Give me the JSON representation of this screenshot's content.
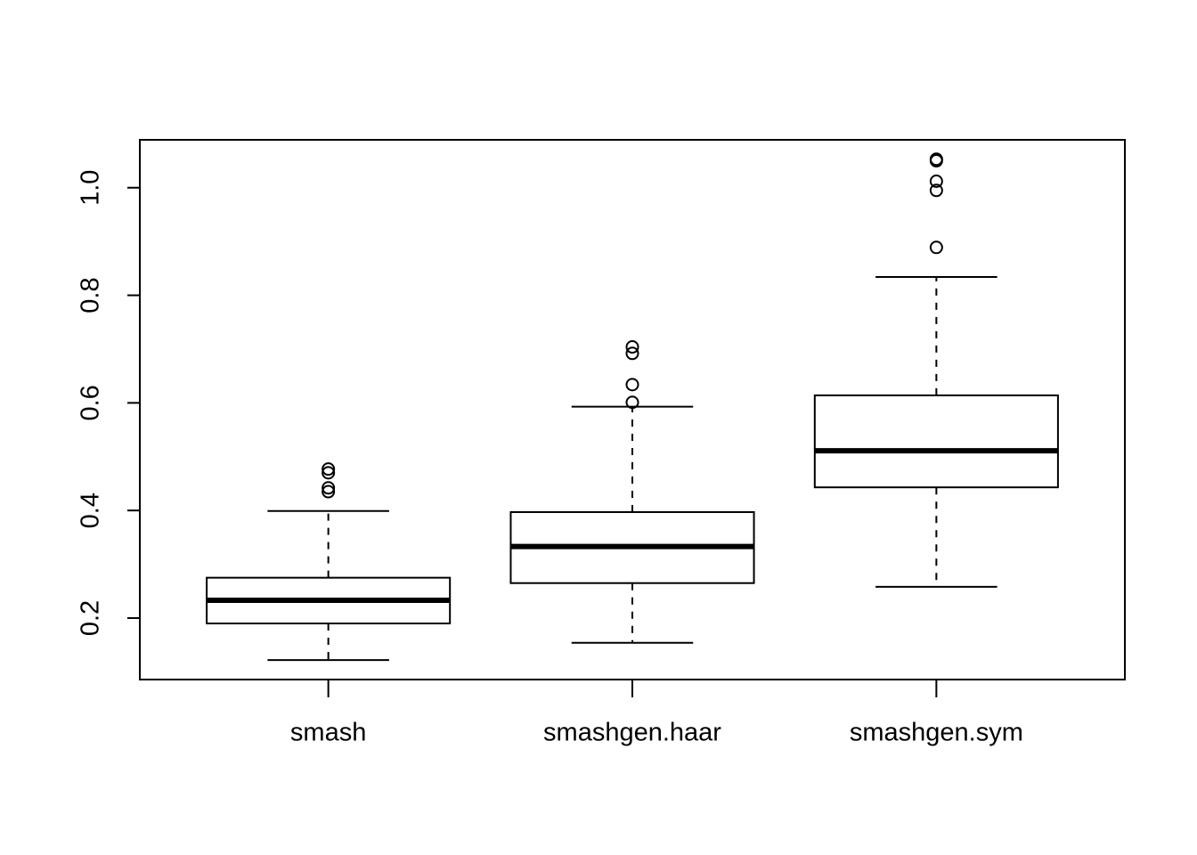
{
  "chart_data": {
    "type": "box",
    "categories": [
      "smash",
      "smashgen.haar",
      "smashgen.sym"
    ],
    "boxes": [
      {
        "whisker_low": 0.122,
        "q1": 0.19,
        "median": 0.233,
        "q3": 0.275,
        "whisker_high": 0.399,
        "outliers": [
          0.477,
          0.47,
          0.442,
          0.435
        ]
      },
      {
        "whisker_low": 0.154,
        "q1": 0.265,
        "median": 0.333,
        "q3": 0.397,
        "whisker_high": 0.593,
        "outliers": [
          0.601,
          0.634,
          0.692,
          0.704
        ]
      },
      {
        "whisker_low": 0.258,
        "q1": 0.443,
        "median": 0.511,
        "q3": 0.614,
        "whisker_high": 0.834,
        "outliers": [
          0.889,
          0.995,
          1.012,
          1.05,
          1.053
        ]
      }
    ],
    "color": "#000000",
    "ylim": [
      0.0857,
      1.089
    ],
    "yticks": [
      {
        "value": 0.2,
        "label": "0.2"
      },
      {
        "value": 0.4,
        "label": "0.4"
      },
      {
        "value": 0.6,
        "label": "0.6"
      },
      {
        "value": 0.8,
        "label": "0.8"
      },
      {
        "value": 1.0,
        "label": "1.0"
      }
    ]
  }
}
